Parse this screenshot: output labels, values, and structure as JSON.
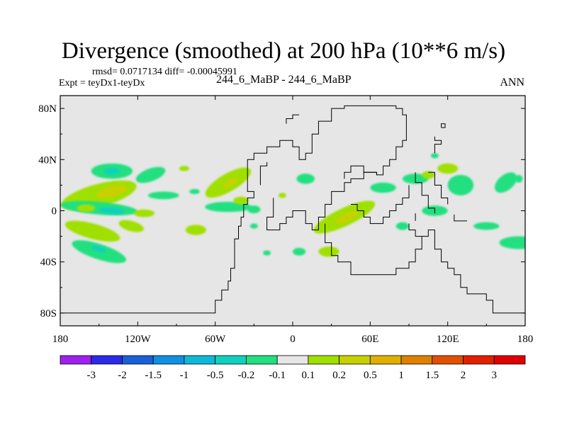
{
  "title": "Divergence (smoothed) at 200 hPa (10**6 m/s)",
  "stats": {
    "rmsd_label": "rmsd=",
    "rmsd": "0.0717134",
    "diff_label": "diff=",
    "diff": "-0.00045991"
  },
  "expt": "Expt = teyDx1-teyDx",
  "case": "244_6_MaBP - 244_6_MaBP",
  "season": "ANN",
  "chart_data": {
    "type": "heatmap",
    "title": "Divergence (smoothed) at 200 hPa (10**6 m/s)",
    "x_range": [
      -180,
      180
    ],
    "y_range": [
      -90,
      90
    ],
    "x_ticks": [
      {
        "value": -180,
        "label": "180"
      },
      {
        "value": -120,
        "label": "120W"
      },
      {
        "value": -60,
        "label": "60W"
      },
      {
        "value": 0,
        "label": "0"
      },
      {
        "value": 60,
        "label": "60E"
      },
      {
        "value": 120,
        "label": "120E"
      },
      {
        "value": 180,
        "label": "180"
      }
    ],
    "y_ticks": [
      {
        "value": 80,
        "label": "80N"
      },
      {
        "value": 40,
        "label": "40N"
      },
      {
        "value": 0,
        "label": "0"
      },
      {
        "value": -40,
        "label": "40S"
      },
      {
        "value": -80,
        "label": "80S"
      }
    ],
    "colorbar": {
      "labels": [
        "-3",
        "-2",
        "-1.5",
        "-1",
        "-0.5",
        "-0.2",
        "-0.1",
        "0.1",
        "0.2",
        "0.5",
        "1",
        "1.5",
        "2",
        "3"
      ],
      "colors": [
        "#a020f0",
        "#2a2ae8",
        "#1a60d8",
        "#1090e0",
        "#10b8d8",
        "#10d0c0",
        "#20e080",
        "#e6e6e6",
        "#a0e000",
        "#c8d000",
        "#e0b000",
        "#e08000",
        "#e05000",
        "#e02000",
        "#e00000"
      ]
    },
    "field_colors": {
      "background": "#e6e6e6",
      "weak_convergence": "#20e080",
      "convergence": "#10d0c0",
      "stronger_convergence": "#10b8d8",
      "weak_divergence": "#a0e000",
      "divergence": "#c8d000",
      "stronger_divergence": "#e0b000",
      "continent_outline": "#000000"
    },
    "blobs": [
      {
        "lon": -140,
        "lat": 31,
        "rlon": 16,
        "rlat": 6,
        "rot": 0,
        "level": "weak_convergence"
      },
      {
        "lon": -140,
        "lat": 31,
        "rlon": 6,
        "rlat": 2.5,
        "rot": 0,
        "level": "convergence"
      },
      {
        "lon": -150,
        "lat": 12,
        "rlon": 30,
        "rlat": 9,
        "rot": -15,
        "level": "weak_divergence"
      },
      {
        "lon": -140,
        "lat": 15,
        "rlon": 12,
        "rlat": 4,
        "rot": -15,
        "level": "divergence"
      },
      {
        "lon": -110,
        "lat": 28,
        "rlon": 12,
        "rlat": 5,
        "rot": -20,
        "level": "weak_convergence"
      },
      {
        "lon": -150,
        "lat": 2,
        "rlon": 30,
        "rlat": 5,
        "rot": 5,
        "level": "weak_convergence"
      },
      {
        "lon": -140,
        "lat": 0,
        "rlon": 10,
        "rlat": 2.5,
        "rot": 5,
        "level": "convergence"
      },
      {
        "lon": -100,
        "lat": 12,
        "rlon": 12,
        "rlat": 3,
        "rot": 0,
        "level": "weak_convergence"
      },
      {
        "lon": -160,
        "lat": 2,
        "rlon": 7,
        "rlat": 3,
        "rot": 0,
        "level": "weak_divergence"
      },
      {
        "lon": -115,
        "lat": -2,
        "rlon": 8,
        "rlat": 3,
        "rot": 0,
        "level": "weak_divergence"
      },
      {
        "lon": -155,
        "lat": -16,
        "rlon": 22,
        "rlat": 6,
        "rot": 15,
        "level": "weak_divergence"
      },
      {
        "lon": -125,
        "lat": -12,
        "rlon": 10,
        "rlat": 4,
        "rot": 15,
        "level": "weak_divergence"
      },
      {
        "lon": -150,
        "lat": -32,
        "rlon": 22,
        "rlat": 6,
        "rot": 18,
        "level": "weak_convergence"
      },
      {
        "lon": -150,
        "lat": -30,
        "rlon": 6,
        "rlat": 2,
        "rot": 18,
        "level": "convergence"
      },
      {
        "lon": -75,
        "lat": -15,
        "rlon": 8,
        "rlat": 4,
        "rot": 0,
        "level": "weak_divergence"
      },
      {
        "lon": -50,
        "lat": 22,
        "rlon": 20,
        "rlat": 7,
        "rot": -30,
        "level": "weak_divergence"
      },
      {
        "lon": -48,
        "lat": 22,
        "rlon": 6,
        "rlat": 2.5,
        "rot": -30,
        "level": "divergence"
      },
      {
        "lon": -50,
        "lat": 3,
        "rlon": 18,
        "rlat": 4,
        "rot": 0,
        "level": "weak_convergence"
      },
      {
        "lon": -40,
        "lat": 8,
        "rlon": 6,
        "rlat": 3,
        "rot": 0,
        "level": "weak_divergence"
      },
      {
        "lon": -30,
        "lat": 1,
        "rlon": 5,
        "rlat": 3,
        "rot": 0,
        "level": "weak_convergence"
      },
      {
        "lon": -76,
        "lat": 15,
        "rlon": 4,
        "rlat": 2,
        "rot": 0,
        "level": "weak_convergence"
      },
      {
        "lon": 10,
        "lat": 25,
        "rlon": 7,
        "rlat": 4,
        "rot": 0,
        "level": "weak_convergence"
      },
      {
        "lon": -8,
        "lat": 12,
        "rlon": 3,
        "rlat": 2,
        "rot": 0,
        "level": "weak_divergence"
      },
      {
        "lon": 40,
        "lat": -5,
        "rlon": 26,
        "rlat": 7,
        "rot": -25,
        "level": "weak_divergence"
      },
      {
        "lon": 42,
        "lat": -5,
        "rlon": 10,
        "rlat": 3,
        "rot": -25,
        "level": "divergence"
      },
      {
        "lon": 5,
        "lat": -32,
        "rlon": 5,
        "rlat": 3,
        "rot": 0,
        "level": "weak_convergence"
      },
      {
        "lon": 28,
        "lat": -32,
        "rlon": 8,
        "rlat": 4,
        "rot": 0,
        "level": "weak_divergence"
      },
      {
        "lon": 70,
        "lat": 18,
        "rlon": 10,
        "rlat": 4,
        "rot": 0,
        "level": "weak_convergence"
      },
      {
        "lon": 95,
        "lat": 25,
        "rlon": 10,
        "rlat": 4,
        "rot": 0,
        "level": "weak_convergence"
      },
      {
        "lon": 105,
        "lat": 28,
        "rlon": 5,
        "rlat": 3,
        "rot": 0,
        "level": "weak_divergence"
      },
      {
        "lon": 130,
        "lat": 20,
        "rlon": 10,
        "rlat": 8,
        "rot": 0,
        "level": "weak_convergence"
      },
      {
        "lon": 165,
        "lat": 22,
        "rlon": 10,
        "rlat": 6,
        "rot": -40,
        "level": "weak_convergence"
      },
      {
        "lon": 175,
        "lat": 25,
        "rlon": 3,
        "rlat": 3,
        "rot": 0,
        "level": "weak_convergence"
      },
      {
        "lon": 85,
        "lat": -12,
        "rlon": 5,
        "rlat": 3,
        "rot": 0,
        "level": "weak_convergence"
      },
      {
        "lon": 110,
        "lat": 0,
        "rlon": 10,
        "rlat": 4,
        "rot": 0,
        "level": "weak_convergence"
      },
      {
        "lon": 150,
        "lat": -12,
        "rlon": 10,
        "rlat": 3,
        "rot": 0,
        "level": "weak_convergence"
      },
      {
        "lon": 175,
        "lat": -25,
        "rlon": 15,
        "rlat": 5,
        "rot": 0,
        "level": "weak_convergence"
      },
      {
        "lon": 120,
        "lat": 33,
        "rlon": 8,
        "rlat": 4,
        "rot": 0,
        "level": "weak_divergence"
      },
      {
        "lon": -20,
        "lat": -33,
        "rlon": 3,
        "rlat": 2,
        "rot": 0,
        "level": "weak_convergence"
      },
      {
        "lon": -30,
        "lat": -12,
        "rlon": 3,
        "rlat": 2,
        "rot": 0,
        "level": "weak_convergence"
      },
      {
        "lon": -84,
        "lat": 33,
        "rlon": 4,
        "rlat": 2,
        "rot": 0,
        "level": "weak_divergence"
      },
      {
        "lon": 110,
        "lat": 43,
        "rlon": 3,
        "rlat": 2,
        "rot": 0,
        "level": "weak_convergence"
      }
    ],
    "outlines": [
      [
        [
          -180,
          -80
        ],
        [
          -60,
          -80
        ],
        [
          -60,
          -70
        ],
        [
          -55,
          -70
        ],
        [
          -55,
          -62
        ],
        [
          -50,
          -62
        ],
        [
          -50,
          -55
        ],
        [
          -48,
          -55
        ],
        [
          -48,
          -45
        ],
        [
          -45,
          -45
        ],
        [
          -45,
          -30
        ],
        [
          -45,
          -22
        ],
        [
          -42,
          -22
        ],
        [
          -42,
          -12
        ],
        [
          -40,
          -12
        ],
        [
          -40,
          -5
        ],
        [
          -38,
          -5
        ],
        [
          -38,
          5
        ],
        [
          -35,
          5
        ],
        [
          -35,
          10
        ],
        [
          -30,
          10
        ],
        [
          -30,
          15
        ],
        [
          -35,
          15
        ],
        [
          -35,
          25
        ],
        [
          -35,
          30
        ],
        [
          -35,
          40
        ],
        [
          -30,
          40
        ],
        [
          -30,
          45
        ],
        [
          -20,
          45
        ],
        [
          -20,
          50
        ],
        [
          -10,
          50
        ],
        [
          -10,
          55
        ],
        [
          0,
          55
        ],
        [
          0,
          50
        ],
        [
          5,
          50
        ],
        [
          5,
          40
        ],
        [
          10,
          40
        ],
        [
          10,
          45
        ],
        [
          15,
          45
        ],
        [
          15,
          60
        ],
        [
          20,
          60
        ],
        [
          20,
          70
        ],
        [
          30,
          70
        ],
        [
          30,
          80
        ],
        [
          40,
          80
        ],
        [
          40,
          82
        ],
        [
          80,
          82
        ],
        [
          80,
          80
        ],
        [
          85,
          80
        ],
        [
          85,
          75
        ],
        [
          88,
          75
        ],
        [
          88,
          55
        ],
        [
          85,
          55
        ],
        [
          85,
          50
        ],
        [
          80,
          50
        ],
        [
          80,
          40
        ],
        [
          75,
          40
        ],
        [
          75,
          35
        ],
        [
          70,
          35
        ],
        [
          70,
          28
        ],
        [
          65,
          28
        ],
        [
          65,
          30
        ],
        [
          55,
          30
        ],
        [
          55,
          25
        ],
        [
          45,
          25
        ],
        [
          45,
          22
        ],
        [
          40,
          22
        ],
        [
          40,
          15
        ],
        [
          30,
          15
        ],
        [
          30,
          5
        ],
        [
          25,
          5
        ],
        [
          25,
          -5
        ],
        [
          20,
          -5
        ],
        [
          20,
          -15
        ],
        [
          15,
          -15
        ],
        [
          15,
          -10
        ],
        [
          10,
          -10
        ],
        [
          10,
          0
        ],
        [
          0,
          0
        ],
        [
          0,
          -5
        ],
        [
          -5,
          -5
        ],
        [
          -5,
          -10
        ],
        [
          -10,
          -10
        ],
        [
          -10,
          -15
        ],
        [
          -20,
          -15
        ],
        [
          -20,
          -5
        ],
        [
          -15,
          -5
        ],
        [
          -15,
          10
        ]
      ],
      [
        [
          25,
          -10
        ],
        [
          25,
          -25
        ],
        [
          30,
          -25
        ],
        [
          30,
          -35
        ],
        [
          35,
          -35
        ],
        [
          35,
          -40
        ],
        [
          45,
          -40
        ],
        [
          45,
          -50
        ],
        [
          80,
          -50
        ],
        [
          80,
          -45
        ],
        [
          90,
          -45
        ],
        [
          90,
          -40
        ],
        [
          95,
          -40
        ],
        [
          95,
          -30
        ],
        [
          100,
          -30
        ],
        [
          100,
          -20
        ],
        [
          105,
          -20
        ],
        [
          105,
          -15
        ],
        [
          110,
          -15
        ],
        [
          110,
          -30
        ],
        [
          115,
          -30
        ],
        [
          115,
          -40
        ],
        [
          120,
          -40
        ],
        [
          120,
          -45
        ],
        [
          125,
          -45
        ],
        [
          125,
          -50
        ],
        [
          130,
          -50
        ],
        [
          130,
          -60
        ],
        [
          135,
          -60
        ],
        [
          135,
          -65
        ],
        [
          150,
          -65
        ],
        [
          150,
          -70
        ],
        [
          155,
          -70
        ],
        [
          155,
          -80
        ],
        [
          180,
          -80
        ]
      ],
      [
        [
          40,
          25
        ],
        [
          40,
          30
        ],
        [
          45,
          30
        ],
        [
          45,
          35
        ],
        [
          55,
          35
        ],
        [
          55,
          30
        ],
        [
          65,
          30
        ],
        [
          65,
          28
        ]
      ],
      [
        [
          90,
          -10
        ],
        [
          90,
          -15
        ],
        [
          95,
          -15
        ],
        [
          95,
          -20
        ],
        [
          100,
          -20
        ]
      ],
      [
        [
          90,
          20
        ],
        [
          90,
          10
        ],
        [
          85,
          10
        ],
        [
          85,
          5
        ],
        [
          80,
          5
        ],
        [
          80,
          0
        ],
        [
          75,
          0
        ],
        [
          75,
          -5
        ],
        [
          70,
          -5
        ],
        [
          70,
          -10
        ],
        [
          60,
          -10
        ],
        [
          60,
          -5
        ],
        [
          55,
          -5
        ],
        [
          55,
          0
        ],
        [
          50,
          0
        ],
        [
          50,
          5
        ],
        [
          45,
          5
        ]
      ],
      [
        [
          95,
          30
        ],
        [
          95,
          22
        ],
        [
          100,
          22
        ],
        [
          100,
          12
        ],
        [
          105,
          12
        ],
        [
          105,
          2
        ],
        [
          110,
          2
        ],
        [
          110,
          -2
        ]
      ],
      [
        [
          105,
          30
        ],
        [
          110,
          30
        ],
        [
          110,
          20
        ],
        [
          115,
          20
        ],
        [
          115,
          10
        ],
        [
          120,
          10
        ],
        [
          120,
          5
        ]
      ],
      [
        [
          -25,
          20
        ],
        [
          -25,
          35
        ],
        [
          -20,
          35
        ],
        [
          -20,
          38
        ]
      ],
      [
        [
          110,
          45
        ],
        [
          110,
          52
        ],
        [
          115,
          52
        ],
        [
          115,
          55
        ],
        [
          110,
          55
        ],
        [
          110,
          58
        ]
      ],
      [
        [
          115,
          65
        ],
        [
          115,
          68
        ],
        [
          118,
          68
        ],
        [
          118,
          65
        ],
        [
          115,
          65
        ]
      ],
      [
        [
          -5,
          68
        ],
        [
          -5,
          72
        ],
        [
          0,
          72
        ],
        [
          0,
          75
        ],
        [
          5,
          75
        ]
      ],
      [
        [
          95,
          -2
        ],
        [
          95,
          -8
        ]
      ],
      [
        [
          125,
          -3
        ],
        [
          125,
          -8
        ],
        [
          135,
          -8
        ]
      ]
    ]
  }
}
